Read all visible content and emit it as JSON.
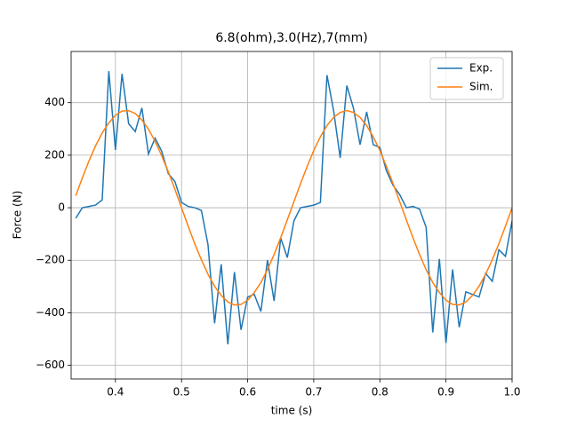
{
  "chart_data": {
    "type": "line",
    "title": "6.8(ohm),3.0(Hz),7(mm)",
    "xlabel": "time (s)",
    "ylabel": "Force (N)",
    "x": [
      0.34,
      0.35,
      0.36,
      0.37,
      0.38,
      0.39,
      0.4,
      0.41,
      0.42,
      0.43,
      0.44,
      0.45,
      0.46,
      0.47,
      0.48,
      0.49,
      0.5,
      0.51,
      0.52,
      0.53,
      0.54,
      0.55,
      0.56,
      0.57,
      0.58,
      0.59,
      0.6,
      0.61,
      0.62,
      0.63,
      0.64,
      0.65,
      0.66,
      0.67,
      0.68,
      0.69,
      0.7,
      0.71,
      0.72,
      0.73,
      0.74,
      0.75,
      0.76,
      0.77,
      0.78,
      0.79,
      0.8,
      0.81,
      0.82,
      0.83,
      0.84,
      0.85,
      0.86,
      0.87,
      0.88,
      0.89,
      0.9,
      0.91,
      0.92,
      0.93,
      0.94,
      0.95,
      0.96,
      0.97,
      0.98,
      0.99,
      1.0
    ],
    "series": [
      {
        "name": "Exp.",
        "color": "#1f77b4",
        "values": [
          -40,
          0,
          5,
          10,
          30,
          520,
          220,
          510,
          320,
          290,
          380,
          205,
          265,
          215,
          130,
          100,
          20,
          5,
          0,
          -10,
          -140,
          -440,
          -215,
          -520,
          -245,
          -465,
          -340,
          -330,
          -395,
          -200,
          -355,
          -115,
          -190,
          -50,
          0,
          5,
          10,
          20,
          505,
          370,
          190,
          465,
          380,
          240,
          365,
          240,
          230,
          140,
          85,
          50,
          0,
          5,
          -5,
          -75,
          -475,
          -195,
          -515,
          -235,
          -455,
          -320,
          -330,
          -340,
          -250,
          -280,
          -160,
          -185,
          -50
        ]
      },
      {
        "name": "Sim.",
        "color": "#ff7f0e",
        "values": [
          46,
          114,
          178,
          236,
          285,
          323,
          352,
          368,
          370,
          359,
          334,
          299,
          253,
          198,
          137,
          70,
          0,
          -70,
          -137,
          -198,
          -253,
          -299,
          -334,
          -359,
          -370,
          -368,
          -352,
          -323,
          -285,
          -236,
          -178,
          -114,
          -46,
          23,
          92,
          157,
          218,
          270,
          313,
          344,
          363,
          370,
          363,
          344,
          313,
          270,
          218,
          157,
          92,
          23,
          -46,
          -114,
          -178,
          -236,
          -285,
          -323,
          -352,
          -368,
          -370,
          -359,
          -334,
          -299,
          -253,
          -198,
          -137,
          -70,
          0
        ]
      }
    ],
    "xlim": [
      0.333,
      1.0
    ],
    "ylim": [
      -652,
      595
    ],
    "xticks": [
      0.4,
      0.5,
      0.6,
      0.7,
      0.8,
      0.9,
      {
        "value": 1.0,
        "label": "1.0"
      }
    ],
    "yticks": [
      {
        "value": -600,
        "label": "−600"
      },
      {
        "value": -400,
        "label": "−400"
      },
      {
        "value": -200,
        "label": "−200"
      },
      0,
      200,
      400
    ],
    "grid": true,
    "legend": "upper right"
  }
}
